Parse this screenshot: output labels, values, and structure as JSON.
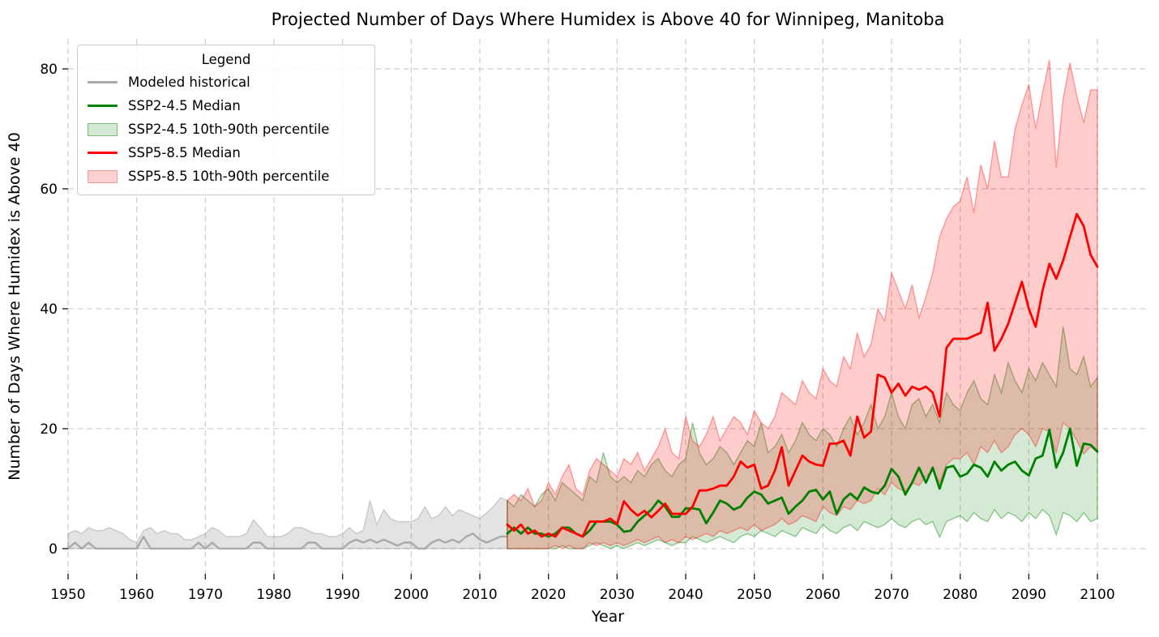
{
  "chart_data": {
    "type": "line",
    "title": "Projected Number of Days Where Humidex is Above 40 for Winnipeg, Manitoba",
    "xlabel": "Year",
    "ylabel": "Number of Days Where Humidex is Above 40",
    "xticks": [
      1950,
      1960,
      1970,
      1980,
      1990,
      2000,
      2010,
      2020,
      2030,
      2040,
      2050,
      2060,
      2070,
      2080,
      2090,
      2100
    ],
    "yticks": [
      0,
      20,
      40,
      60,
      80
    ],
    "xlim": [
      1950,
      2107.2
    ],
    "ylim": [
      -4.2,
      85
    ],
    "grid": true,
    "gridline_color": "#cccccc",
    "background_color": "#ffffff",
    "legend": {
      "title": "Legend",
      "position": "upper left",
      "items": [
        {
          "label": "Modeled historical",
          "swatch": "line",
          "color": "#a9a9a9"
        },
        {
          "label": "SSP2-4.5 Median",
          "swatch": "line",
          "color": "#008000"
        },
        {
          "label": "SSP2-4.5 10th-90th percentile",
          "swatch": "patch",
          "fill": "#d4e8d4",
          "edge": "#7db87d"
        },
        {
          "label": "SSP5-8.5 Median",
          "swatch": "line",
          "color": "#ff0000"
        },
        {
          "label": "SSP5-8.5 10th-90th percentile",
          "swatch": "patch",
          "fill": "#fbd0d0",
          "edge": "#f49c9c"
        }
      ]
    },
    "series": [
      {
        "name": "Modeled historical 10th-90th percentile",
        "kind": "band",
        "color": "#808080",
        "fill_opacity": 0.22,
        "edge_opacity": 0.35,
        "year_start": 1950,
        "upper": [
          2.5,
          3,
          2.5,
          3.5,
          3,
          3,
          3.5,
          3,
          2.5,
          1.5,
          1,
          3,
          3.5,
          2.5,
          3,
          2.5,
          2.5,
          1.5,
          1.5,
          2,
          2.5,
          3.5,
          3,
          2,
          2,
          2,
          2.5,
          4.8,
          3.5,
          2,
          2,
          2,
          2.5,
          3.5,
          3.5,
          3,
          2.5,
          2.5,
          2,
          2,
          2.5,
          3.5,
          2.5,
          3,
          8,
          4,
          6.5,
          5,
          4.5,
          4.5,
          4.5,
          5,
          7,
          5,
          5.5,
          7,
          5.5,
          6.5,
          6,
          5.5,
          5,
          6,
          7,
          8.5,
          8
        ],
        "lower": 0
      },
      {
        "name": "Modeled historical",
        "kind": "line",
        "color": "#a9a9a9",
        "width": 2.4,
        "year_start": 1950,
        "values": [
          0,
          1,
          0,
          1,
          0,
          0,
          0,
          0,
          0,
          0,
          0,
          2,
          0,
          0,
          0,
          0,
          0,
          0,
          0,
          1,
          0,
          1,
          0,
          0,
          0,
          0,
          0,
          1,
          1,
          0,
          0,
          0,
          0,
          0,
          0,
          1,
          1,
          0,
          0,
          0,
          0,
          1,
          1.5,
          1,
          1.5,
          1,
          1.5,
          1,
          0.5,
          1,
          1,
          0,
          0,
          1,
          1.5,
          1,
          1.5,
          1,
          2,
          2.5,
          1.5,
          1,
          1.5,
          2,
          2
        ]
      },
      {
        "name": "SSP2-4.5 10th-90th percentile",
        "kind": "band",
        "color": "#008000",
        "fill_opacity": 0.17,
        "edge_opacity": 0.4,
        "year_start": 2014,
        "upper": [
          8,
          7,
          9,
          8,
          7,
          9,
          10,
          8,
          11,
          10,
          9,
          8,
          12,
          11,
          16,
          12,
          11,
          12,
          11,
          13,
          12,
          14,
          15,
          13,
          12,
          14,
          15,
          21,
          16,
          14,
          15,
          17,
          16,
          14,
          16,
          18,
          17,
          21,
          16,
          17,
          19,
          16,
          18,
          21,
          19,
          18,
          20,
          19,
          17,
          20,
          22,
          19,
          21,
          24,
          20,
          22,
          26,
          22,
          20,
          24,
          25,
          22,
          24,
          21,
          26,
          24,
          23,
          26,
          28,
          25,
          24,
          29,
          26,
          31,
          28,
          26,
          30,
          28,
          31,
          29,
          27,
          37,
          30,
          29,
          32,
          27,
          28.5
        ],
        "lower": [
          0,
          0,
          0,
          0,
          0,
          0,
          0,
          0,
          0.5,
          0,
          0,
          0,
          0.5,
          1,
          0.5,
          0,
          0.5,
          0,
          0.5,
          1,
          0.5,
          1,
          1.5,
          1,
          0.5,
          1,
          1,
          2,
          1.5,
          1,
          1.5,
          2,
          1.5,
          1,
          2,
          2.5,
          2,
          3,
          2.5,
          2,
          3,
          2.5,
          2,
          3.5,
          3,
          2.5,
          4,
          3,
          2.5,
          3.5,
          4,
          3,
          4.5,
          4,
          3.5,
          4,
          5,
          4,
          3.5,
          4.5,
          5,
          4,
          4.5,
          1.9,
          4.5,
          5,
          5.5,
          4.5,
          6,
          5,
          4.5,
          6.5,
          5,
          6,
          5.5,
          4.5,
          6,
          5,
          6.5,
          5.5,
          2.3,
          6,
          5.5,
          4.5,
          6,
          4.5,
          5
        ]
      },
      {
        "name": "SSP5-8.5 10th-90th percentile",
        "kind": "band",
        "color": "#ff0000",
        "fill_opacity": 0.2,
        "edge_opacity": 0.35,
        "year_start": 2014,
        "upper": [
          8,
          9,
          8,
          10,
          7,
          8,
          11,
          9,
          12,
          14,
          10,
          9,
          13,
          15,
          14,
          13,
          12,
          15,
          14,
          16,
          13,
          15,
          17,
          20,
          16,
          15,
          22,
          18,
          17,
          19,
          22,
          18,
          20,
          22,
          21,
          19,
          23,
          21,
          20,
          22,
          26,
          25,
          24,
          28,
          26,
          25,
          30,
          28,
          27,
          32,
          30,
          36,
          32,
          34,
          40,
          38,
          46,
          43,
          40,
          44,
          38.5,
          42,
          46,
          52,
          55,
          57,
          58,
          62,
          56,
          64,
          60,
          68,
          62,
          62,
          70,
          74,
          77.4,
          70,
          76,
          81.5,
          63.5,
          75,
          81,
          75.5,
          71,
          76.5,
          76.5
        ],
        "lower": [
          0,
          0,
          0,
          0,
          0,
          0,
          0,
          0.5,
          0,
          0.5,
          0,
          0,
          1,
          0.5,
          1,
          0.5,
          1,
          0.5,
          1,
          1.5,
          1,
          1.5,
          2,
          1,
          1.5,
          1,
          2,
          1.5,
          2,
          2.5,
          2,
          3,
          2.5,
          3,
          3.5,
          3,
          4,
          3,
          3.5,
          4,
          5,
          4,
          4.5,
          5.5,
          5,
          4.5,
          7,
          6,
          5.5,
          7,
          6.5,
          8,
          7.5,
          8,
          10,
          9,
          11,
          10,
          9.5,
          11,
          10.5,
          12,
          13,
          11,
          14,
          15,
          15,
          16,
          14,
          17,
          16,
          18,
          16,
          17,
          19,
          20,
          19,
          17,
          20,
          19.5,
          16,
          21,
          20,
          18,
          15.8,
          17,
          16
        ]
      },
      {
        "name": "SSP2-4.5 Median",
        "kind": "line",
        "color": "#008000",
        "width": 2.8,
        "year_start": 2014,
        "values": [
          2.5,
          3.5,
          2.5,
          3.5,
          2.5,
          2.5,
          2,
          2.5,
          3.5,
          3.5,
          2.5,
          2,
          3,
          4.5,
          4.5,
          4.5,
          4,
          2.8,
          3,
          4.5,
          5.5,
          6.5,
          8,
          7,
          5.3,
          5.3,
          6.7,
          6.7,
          6.5,
          4.2,
          6,
          8,
          7.5,
          6.5,
          7,
          8.5,
          9.5,
          9,
          7.5,
          8,
          8.5,
          5.8,
          7,
          8,
          9.5,
          9.8,
          8.2,
          9.5,
          5.8,
          8.2,
          9.2,
          8.2,
          10.2,
          9.5,
          9.2,
          10.5,
          13.3,
          12,
          9,
          11,
          13.5,
          11,
          13.5,
          10,
          13.5,
          13.8,
          12,
          12.5,
          14,
          13.5,
          12,
          14.5,
          13,
          14,
          14.5,
          13,
          12.2,
          15,
          15.5,
          19.8,
          13.5,
          16,
          20,
          13.8,
          17.5,
          17.3,
          16.2
        ]
      },
      {
        "name": "SSP5-8.5 Median",
        "kind": "line",
        "color": "#ff0000",
        "width": 2.8,
        "year_start": 2014,
        "values": [
          4,
          3,
          4,
          2.5,
          3,
          2,
          2.5,
          2,
          3.5,
          3,
          2.5,
          2,
          4.5,
          4.5,
          4.5,
          5,
          4.1,
          7.9,
          6.5,
          5.5,
          6.3,
          5.2,
          6.3,
          7.5,
          5.8,
          5.8,
          5.8,
          7,
          9.7,
          9.7,
          10,
          10.5,
          10.5,
          12,
          14.5,
          13.5,
          14,
          10,
          10.5,
          13,
          16.9,
          10.5,
          13,
          15.5,
          14.5,
          14,
          13.8,
          17.5,
          17.5,
          18,
          15.5,
          22,
          18.5,
          19.5,
          29,
          28.5,
          26,
          27.5,
          25.5,
          27,
          26.5,
          27,
          26,
          22,
          33.5,
          35,
          35,
          35,
          35.5,
          36,
          41,
          33,
          35,
          37.5,
          41,
          44.5,
          40,
          37,
          43,
          47.5,
          45,
          48,
          52,
          55.8,
          53.8,
          49,
          47
        ]
      }
    ]
  }
}
